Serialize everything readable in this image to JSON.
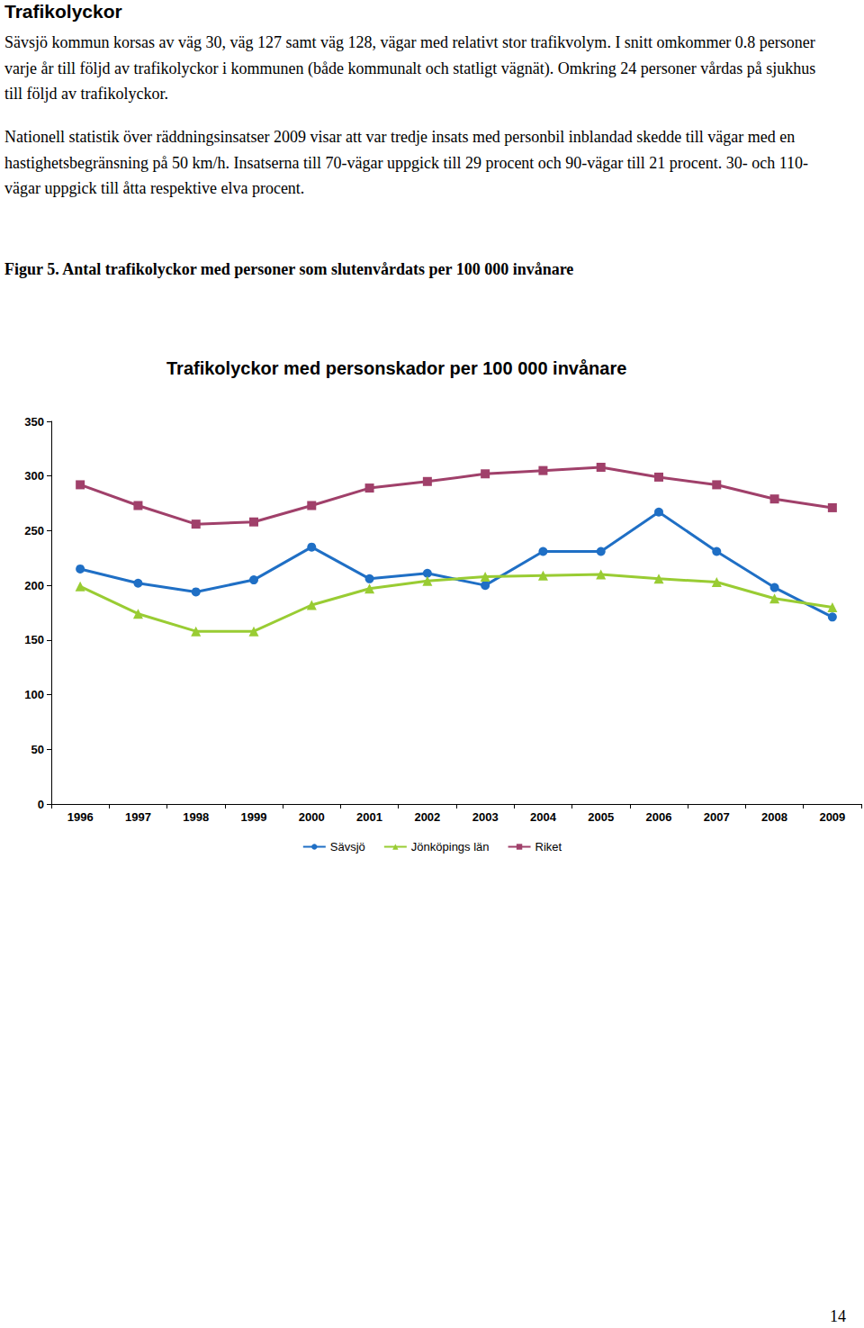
{
  "heading": "Trafikolyckor",
  "paragraphs": [
    "Sävsjö kommun korsas av väg 30, väg 127 samt väg 128, vägar med relativt stor trafikvolym. I snitt omkommer 0.8 personer varje år till följd av trafikolyckor i kommunen (både kommunalt och statligt vägnät). Omkring 24 personer vårdas på sjukhus till följd av trafikolyckor.",
    "Nationell statistik över räddningsinsatser 2009 visar att var tredje insats med personbil inblandad skedde till vägar med en hastighetsbegränsning på 50 km/h. Insatserna till 70-vägar uppgick till 29 procent och 90-vägar till 21 procent. 30- och 110-vägar uppgick till åtta respektive elva procent."
  ],
  "figure_caption": "Figur 5. Antal trafikolyckor med personer som slutenvårdats per 100 000 invånare",
  "chart_data": {
    "type": "line",
    "title": "Trafikolyckor med personskador per 100 000 invånare",
    "categories": [
      "1996",
      "1997",
      "1998",
      "1999",
      "2000",
      "2001",
      "2002",
      "2003",
      "2004",
      "2005",
      "2006",
      "2007",
      "2008",
      "2009"
    ],
    "series": [
      {
        "name": "Sävsjö",
        "color": "#1f6fc5",
        "marker": "circle",
        "values": [
          215,
          202,
          194,
          205,
          235,
          206,
          211,
          200,
          231,
          231,
          267,
          231,
          198,
          171
        ]
      },
      {
        "name": "Jönköpings län",
        "color": "#99cc33",
        "marker": "triangle",
        "values": [
          199,
          174,
          158,
          158,
          182,
          197,
          204,
          208,
          209,
          210,
          206,
          203,
          188,
          180
        ]
      },
      {
        "name": "Riket",
        "color": "#a0406a",
        "marker": "rect",
        "values": [
          292,
          273,
          256,
          258,
          273,
          289,
          295,
          302,
          305,
          308,
          299,
          292,
          279,
          271
        ]
      }
    ],
    "ylim": [
      0,
      350
    ],
    "yticks": [
      0,
      50,
      100,
      150,
      200,
      250,
      300,
      350
    ],
    "grid": false,
    "legend": "bottom"
  },
  "page_number": "14"
}
